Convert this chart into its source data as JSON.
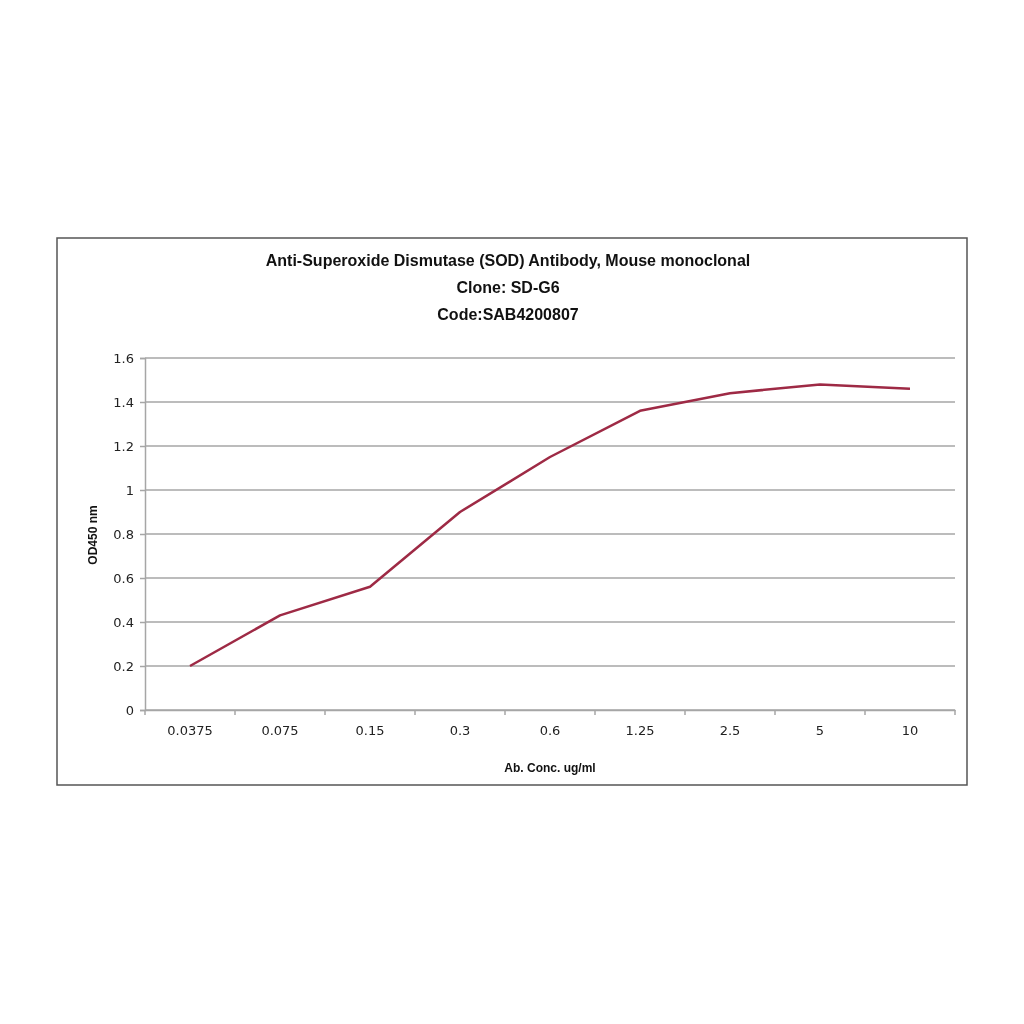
{
  "chart_data": {
    "type": "line",
    "title": "Anti-Superoxide Dismutase (SOD) Antibody, Mouse monoclonal\nClone: SD-G6\nCode:SAB4200807",
    "xlabel": "Ab. Conc. ug/ml",
    "ylabel": "OD450 nm",
    "categories": [
      "0.0375",
      "0.075",
      "0.15",
      "0.3",
      "0.6",
      "1.25",
      "2.5",
      "5",
      "10"
    ],
    "series": [
      {
        "color": "#9e2a45",
        "values": [
          0.2,
          0.43,
          0.56,
          0.9,
          1.15,
          1.36,
          1.44,
          1.48,
          1.46
        ]
      }
    ],
    "ylim": [
      0,
      1.6
    ],
    "yticks": [
      0,
      0.2,
      0.4,
      0.6,
      0.8,
      1,
      1.2,
      1.4,
      1.6
    ],
    "grid": "y"
  }
}
